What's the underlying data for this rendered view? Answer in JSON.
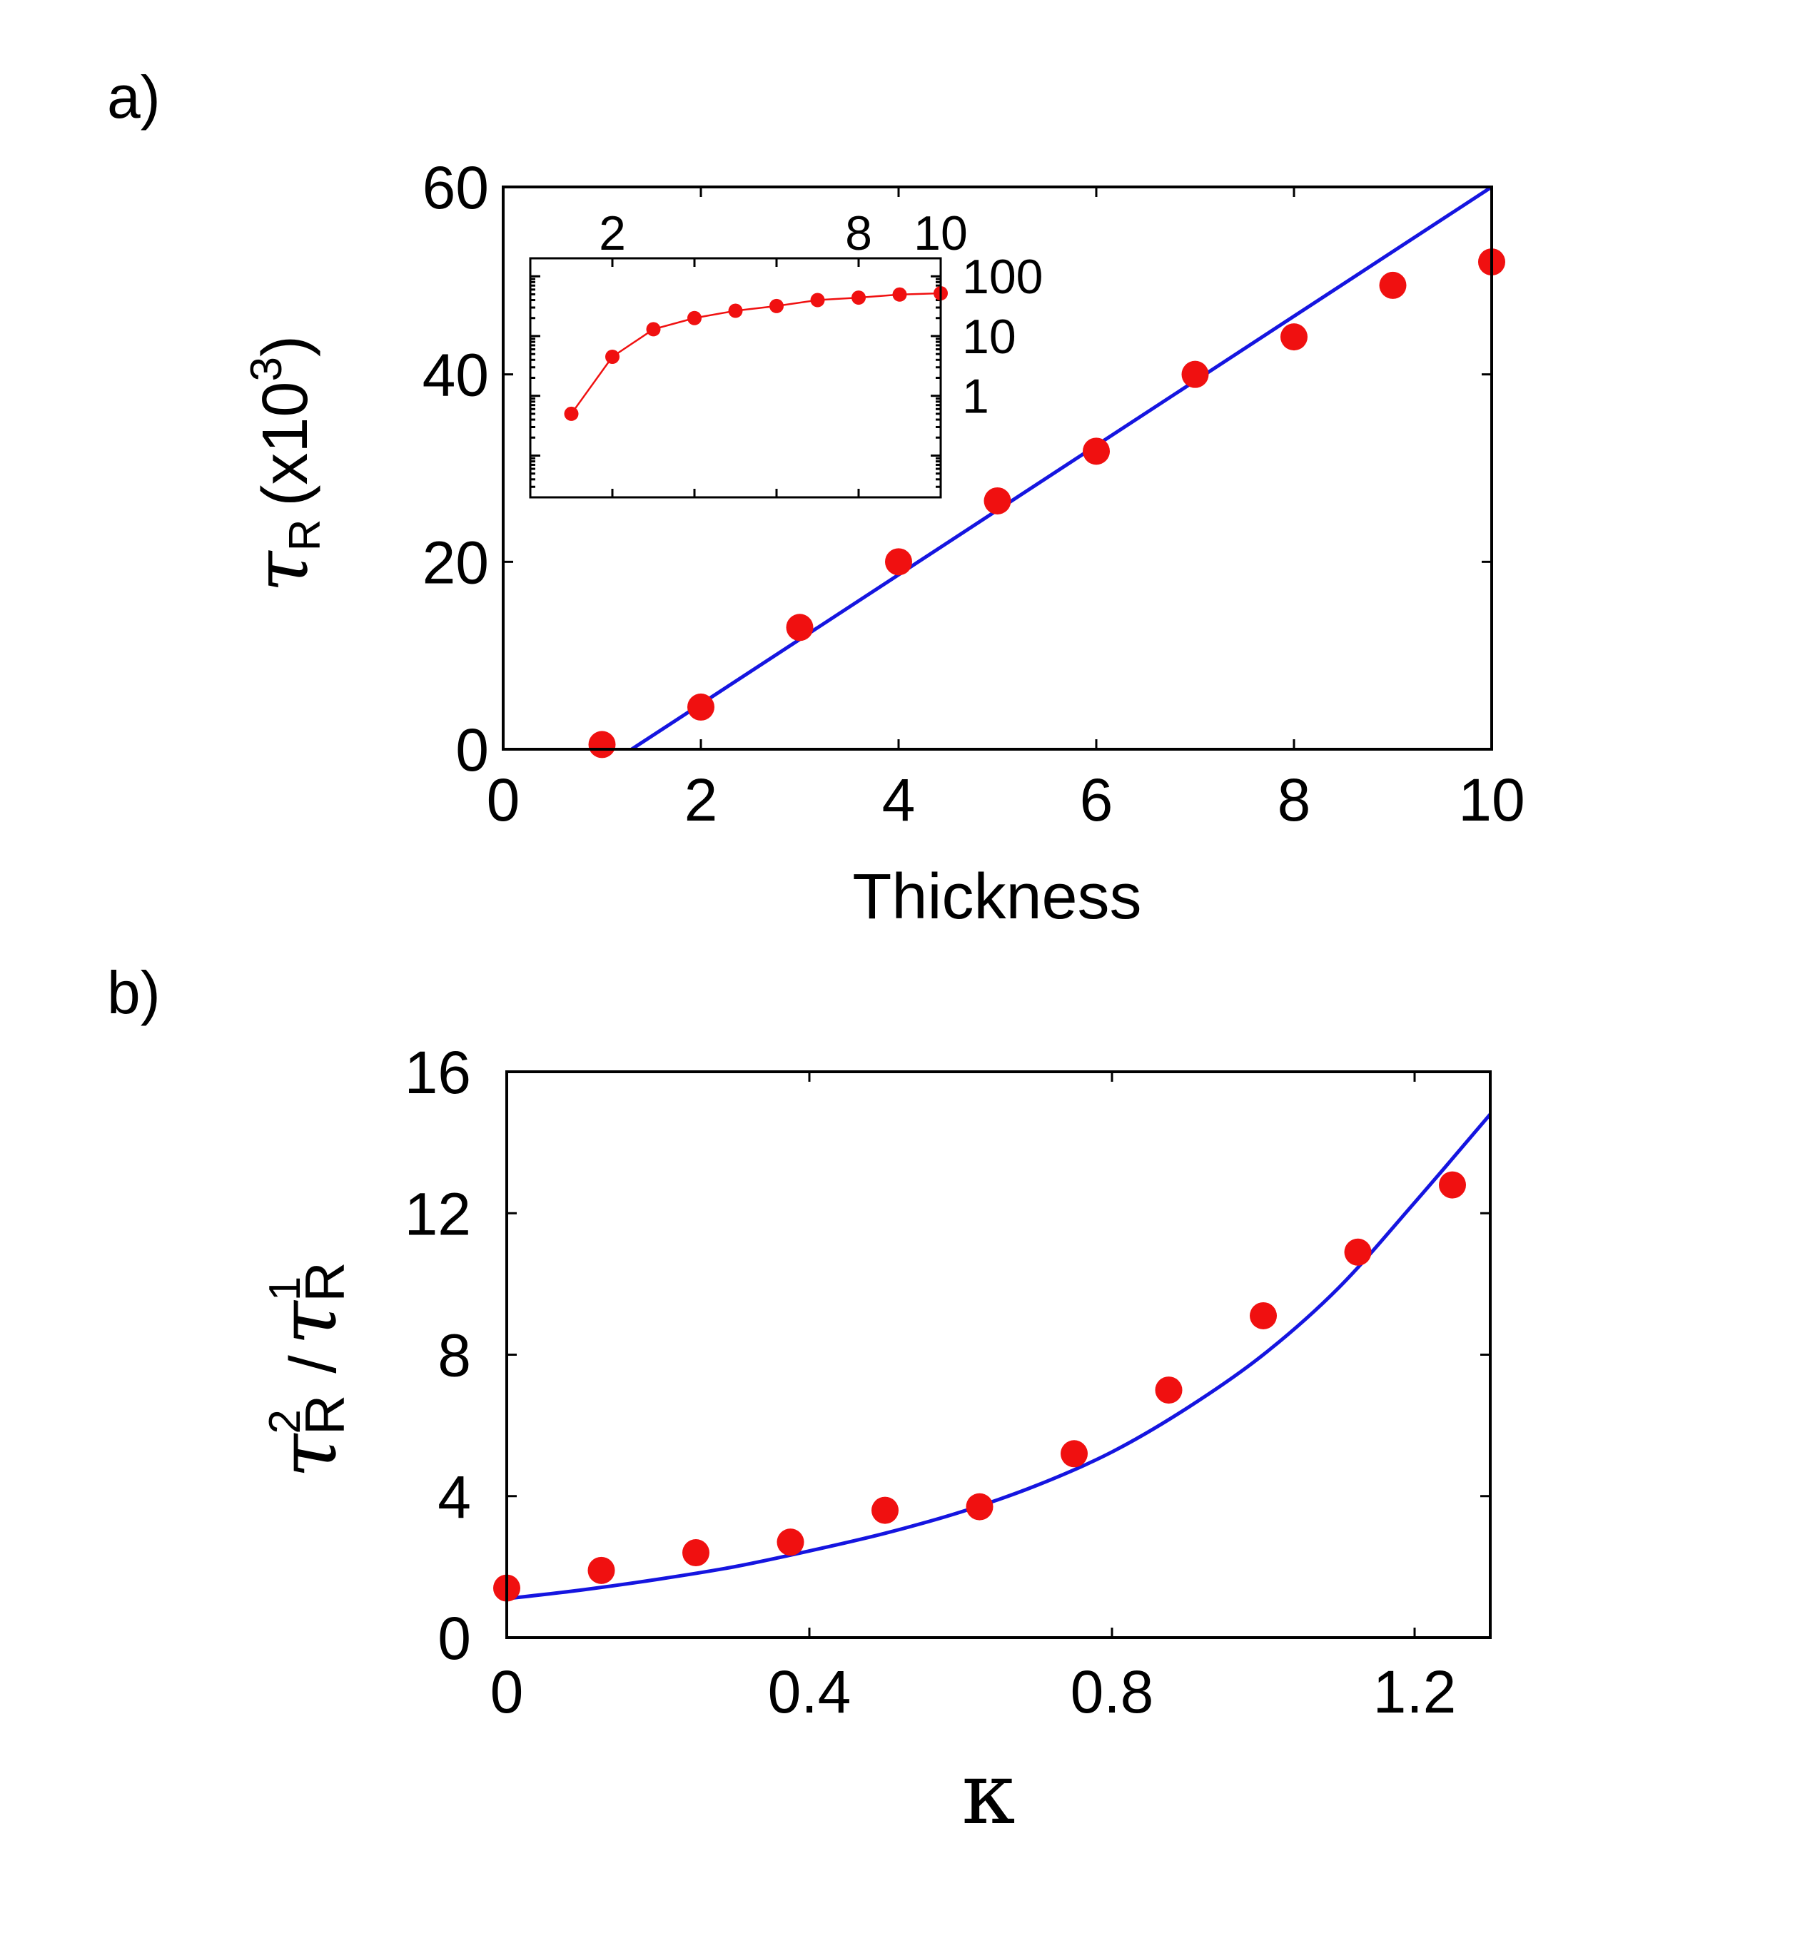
{
  "figure": {
    "panel_a_label": "a)",
    "panel_b_label": "b)"
  },
  "chart_data": [
    {
      "id": "panel_a",
      "type": "scatter",
      "title": "",
      "xlabel": "Thickness",
      "ylabel_symbol": "τ",
      "ylabel_sub": "R",
      "ylabel_open": "(x10",
      "ylabel_sup": "3",
      "ylabel_close": ")",
      "xlim": [
        0,
        10
      ],
      "ylim": [
        0,
        60
      ],
      "xticks": [
        0,
        2,
        4,
        6,
        8,
        10
      ],
      "xtick_labels": [
        "0",
        "2",
        "4",
        "6",
        "8",
        "10"
      ],
      "yticks": [
        0,
        20,
        40,
        60
      ],
      "ytick_labels": [
        "0",
        "20",
        "40",
        "60"
      ],
      "grid": false,
      "series": [
        {
          "name": "data",
          "kind": "markers",
          "color": "#f01010",
          "x": [
            1,
            2,
            3,
            4,
            5,
            6,
            7,
            8,
            9,
            10
          ],
          "y": [
            0.5,
            4.5,
            13,
            20,
            26.5,
            31.8,
            40,
            44,
            49.5,
            52
          ]
        },
        {
          "name": "linear fit",
          "kind": "line",
          "color": "#1515e0",
          "x": [
            1.3,
            10
          ],
          "y": [
            0,
            60
          ]
        }
      ],
      "inset": {
        "type": "line",
        "xscale": "linear",
        "yscale": "log",
        "xlim": [
          0,
          10
        ],
        "ylim": [
          0.02,
          200
        ],
        "xticks": [
          2,
          8,
          10
        ],
        "xtick_labels": [
          "2",
          "8",
          "10"
        ],
        "yticks": [
          1,
          10,
          100
        ],
        "ytick_labels": [
          "1",
          "10",
          "100"
        ],
        "series": [
          {
            "name": "data",
            "color": "#f01010",
            "x": [
              1,
              2,
              3,
              4,
              5,
              6,
              7,
              8,
              9,
              10
            ],
            "y": [
              0.5,
              4.5,
              13,
              20,
              26.5,
              31.8,
              40,
              44,
              49.5,
              52
            ]
          }
        ]
      }
    },
    {
      "id": "panel_b",
      "type": "scatter",
      "title": "",
      "xlabel": "κ",
      "ylabel_symbol": "τ",
      "ylabel_sup1": "2",
      "ylabel_sub1": "R",
      "ylabel_slash": "/",
      "ylabel_sup2": "1",
      "ylabel_sub2": "R",
      "xlim": [
        0,
        1.3
      ],
      "ylim": [
        0,
        16
      ],
      "xticks": [
        0,
        0.4,
        0.8,
        1.2
      ],
      "xtick_labels": [
        "0",
        "0.4",
        "0.8",
        "1.2"
      ],
      "yticks": [
        0,
        4,
        8,
        12,
        16
      ],
      "ytick_labels": [
        "0",
        "4",
        "8",
        "12",
        "16"
      ],
      "grid": false,
      "series": [
        {
          "name": "data",
          "kind": "markers",
          "color": "#f01010",
          "x": [
            0,
            0.125,
            0.25,
            0.375,
            0.5,
            0.625,
            0.75,
            0.875,
            1.0,
            1.125,
            1.25
          ],
          "y": [
            1.4,
            1.9,
            2.4,
            2.7,
            3.6,
            3.7,
            5.2,
            7.0,
            9.1,
            10.9,
            12.8
          ]
        },
        {
          "name": "model",
          "kind": "line",
          "color": "#1515e0",
          "x": [
            0,
            0.1,
            0.2,
            0.3,
            0.4,
            0.5,
            0.6,
            0.7,
            0.8,
            0.9,
            1.0,
            1.1,
            1.2,
            1.3
          ],
          "y": [
            1.1,
            1.35,
            1.65,
            2.0,
            2.45,
            2.95,
            3.55,
            4.3,
            5.25,
            6.5,
            8.0,
            9.9,
            12.3,
            14.8
          ]
        }
      ]
    }
  ]
}
